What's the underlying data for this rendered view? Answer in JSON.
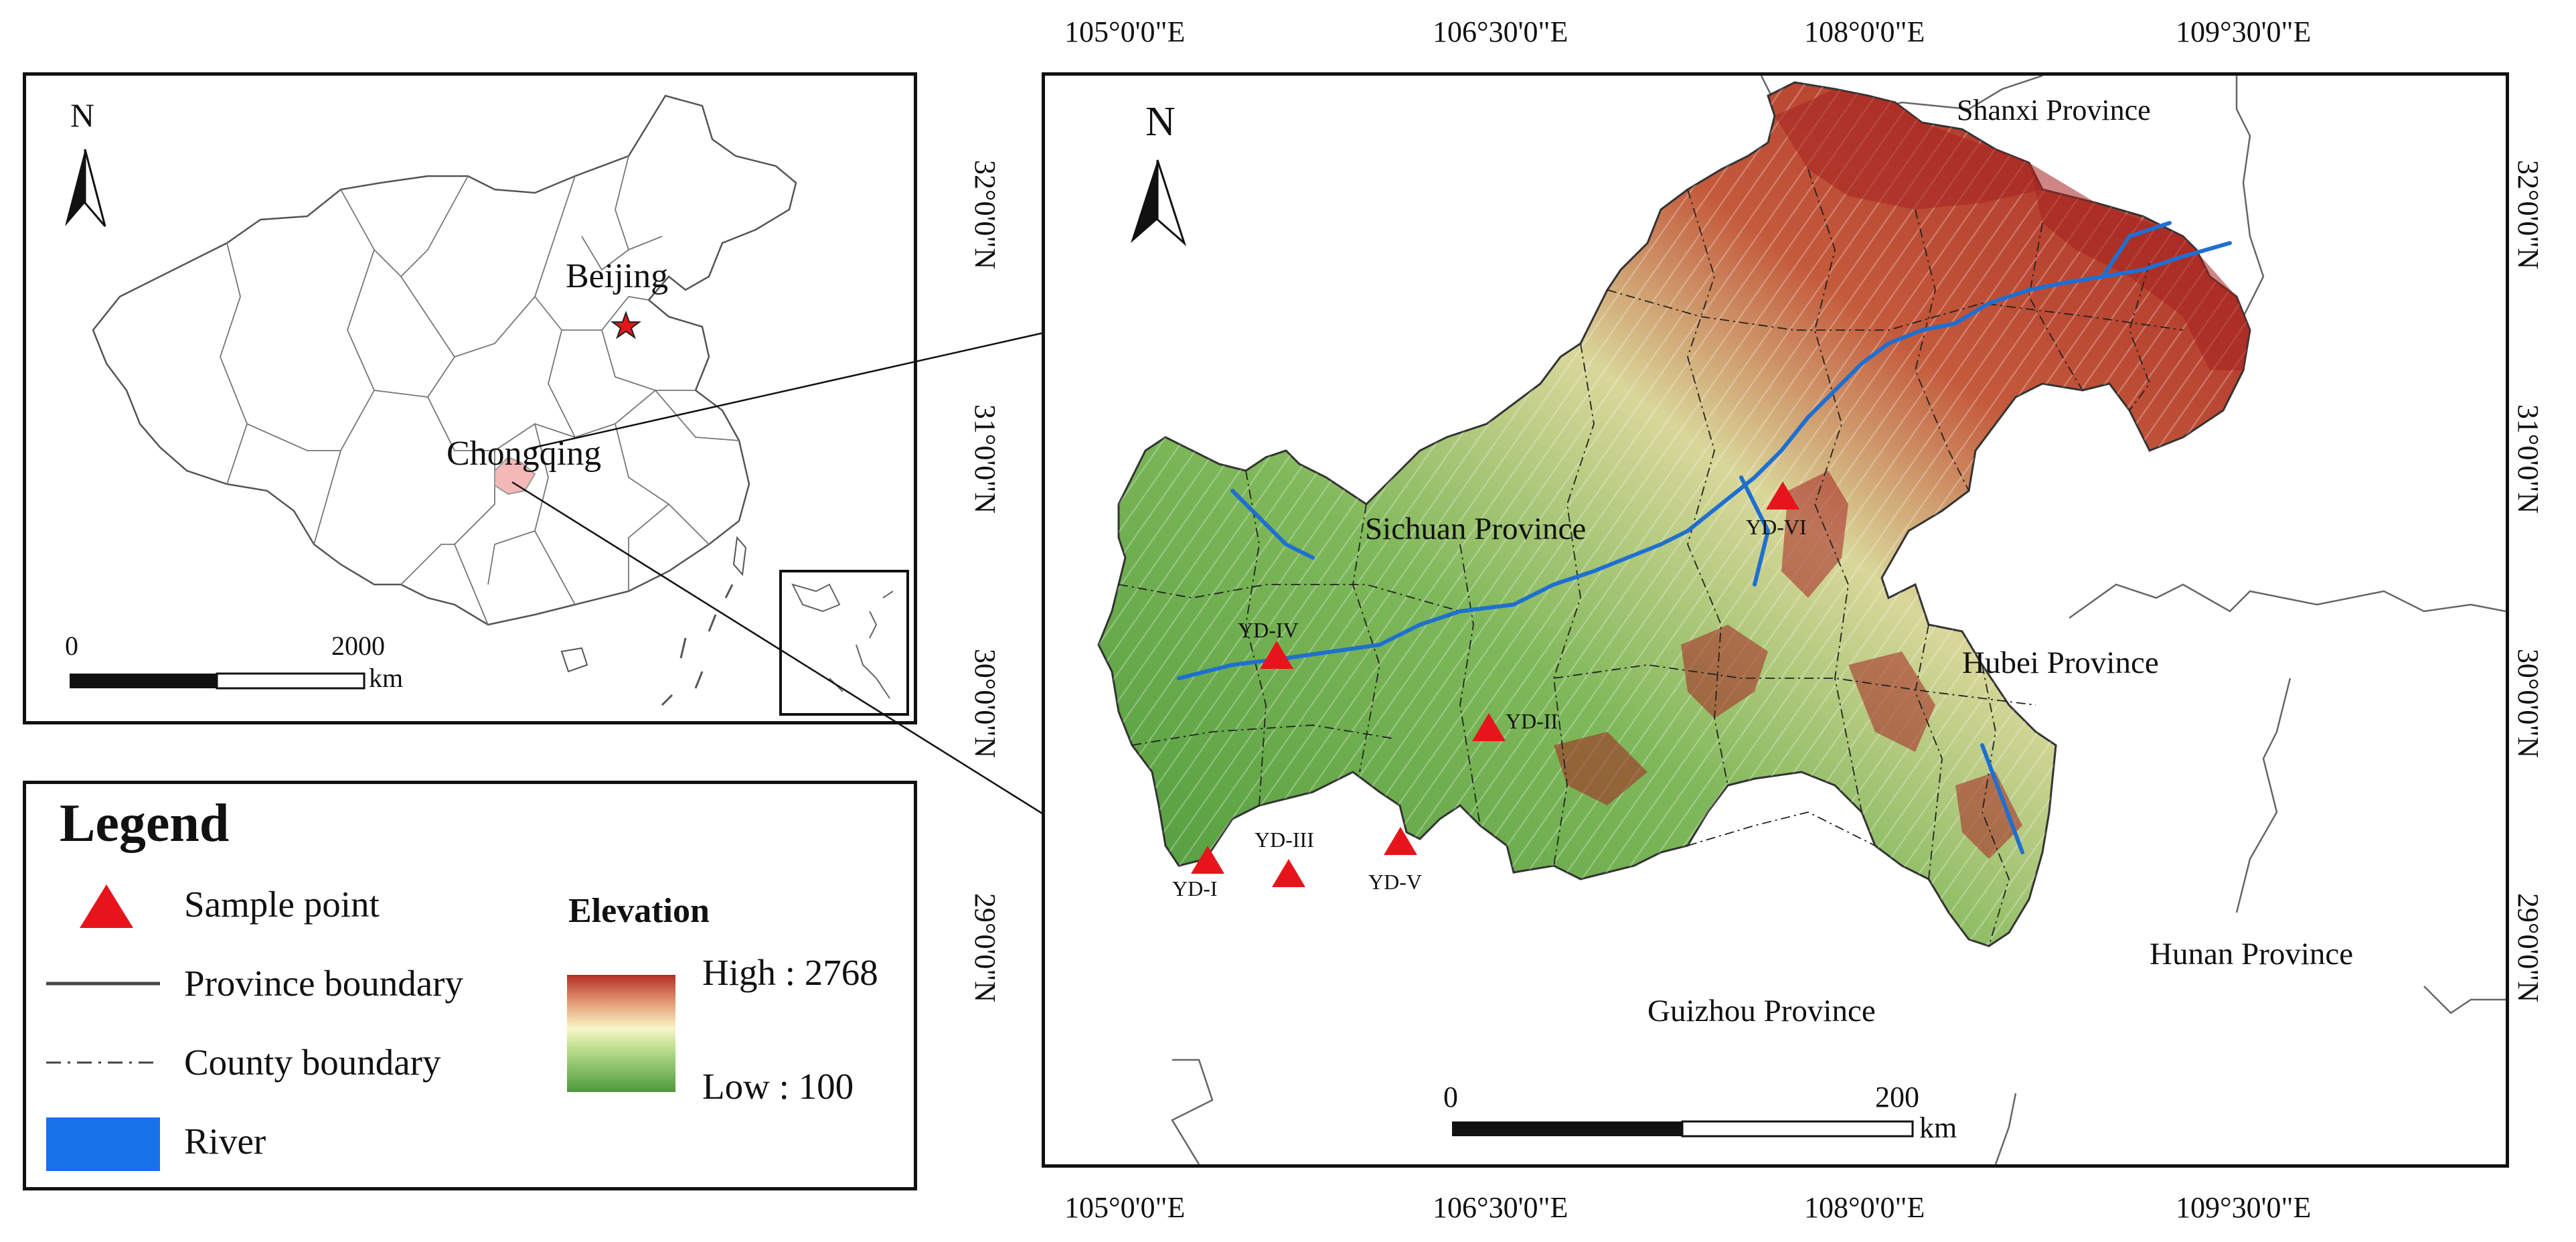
{
  "inset": {
    "north": "N",
    "beijing_label": "Beijing",
    "chongqing_label": "Chongqing",
    "scale": {
      "start": "0",
      "end": "2000",
      "unit": "km"
    }
  },
  "main_map": {
    "north": "N",
    "top_ticks": [
      "105°0'0\"E",
      "106°30'0\"E",
      "108°0'0\"E",
      "109°30'0\"E"
    ],
    "bottom_ticks": [
      "105°0'0\"E",
      "106°30'0\"E",
      "108°0'0\"E",
      "109°30'0\"E"
    ],
    "left_ticks": [
      "32°0'0\"N",
      "31°0'0\"N",
      "30°0'0\"N",
      "29°0'0\"N"
    ],
    "right_ticks": [
      "32°0'0\"N",
      "31°0'0\"N",
      "30°0'0\"N",
      "29°0'0\"N"
    ],
    "provinces": {
      "shanxi": "Shanxi Province",
      "sichuan": "Sichuan Province",
      "hubei": "Hubei Province",
      "guizhou": "Guizhou Province",
      "hunan": "Hunan Province"
    },
    "sample_points": [
      "YD-I",
      "YD-II",
      "YD-III",
      "YD-IV",
      "YD-V",
      "YD-VI"
    ],
    "scale": {
      "start": "0",
      "end": "200",
      "unit": "km"
    }
  },
  "legend": {
    "title": "Legend",
    "sample_point": "Sample point",
    "province_boundary": "Province boundary",
    "county_boundary": "County boundary",
    "river": "River",
    "elevation_title": "Elevation",
    "high": "High : 2768",
    "low": "Low : 100"
  },
  "colors": {
    "sample_marker": "#e8141b",
    "river": "#1f6fd1",
    "high_elevation": "#b52d24",
    "mid_elevation": "#f9f6c8",
    "low_elevation": "#4d9a3b",
    "chongqing_highlight": "#f4b8b8"
  }
}
